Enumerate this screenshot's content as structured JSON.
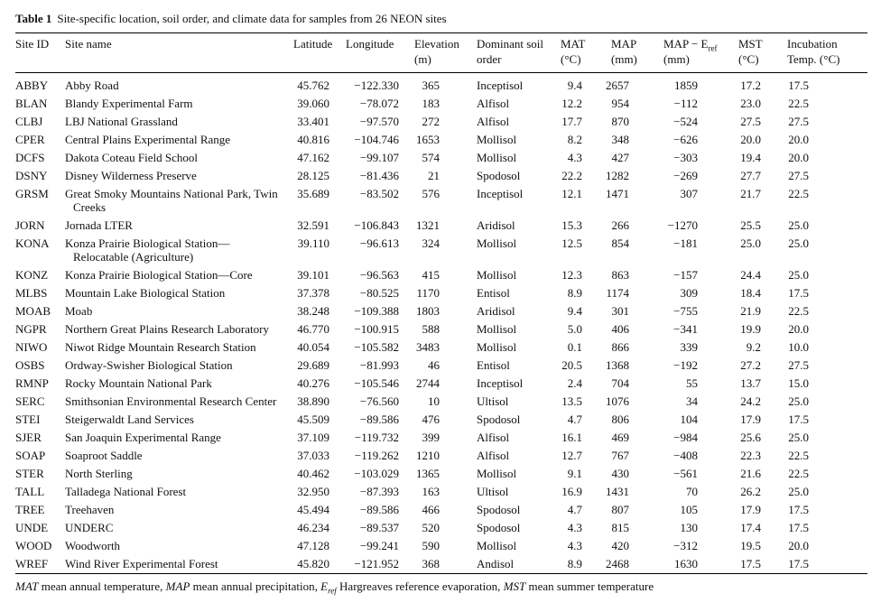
{
  "caption": {
    "label": "Table 1",
    "text": "Site-specific location, soil order, and climate data for samples from 26 NEON sites"
  },
  "headers": {
    "site_id": "Site ID",
    "site_name": "Site name",
    "latitude": "Latitude",
    "longitude": "Longitude",
    "elevation_1": "Elevation",
    "elevation_2": "(m)",
    "soil_1": "Dominant soil",
    "soil_2": "order",
    "mat_1": "MAT",
    "mat_2": "(°C)",
    "map_1": "MAP",
    "map_2": "(mm)",
    "mapref_1": "MAP − E",
    "mapref_sub": "ref",
    "mapref_2": "(mm)",
    "mst_1": "MST",
    "mst_2": "(°C)",
    "inc_1": "Incubation",
    "inc_2": "Temp. (°C)"
  },
  "rows": [
    {
      "id": "ABBY",
      "name": "Abby Road",
      "lat": "45.762",
      "lon": "−122.330",
      "elev": "365",
      "soil": "Inceptisol",
      "mat": "9.4",
      "map": "2657",
      "mapref": "1859",
      "mst": "17.2",
      "inc": "17.5"
    },
    {
      "id": "BLAN",
      "name": "Blandy Experimental Farm",
      "lat": "39.060",
      "lon": "−78.072",
      "elev": "183",
      "soil": "Alfisol",
      "mat": "12.2",
      "map": "954",
      "mapref": "−112",
      "mst": "23.0",
      "inc": "22.5"
    },
    {
      "id": "CLBJ",
      "name": "LBJ National Grassland",
      "lat": "33.401",
      "lon": "−97.570",
      "elev": "272",
      "soil": "Alfisol",
      "mat": "17.7",
      "map": "870",
      "mapref": "−524",
      "mst": "27.5",
      "inc": "27.5"
    },
    {
      "id": "CPER",
      "name": "Central Plains Experimental Range",
      "lat": "40.816",
      "lon": "−104.746",
      "elev": "1653",
      "soil": "Mollisol",
      "mat": "8.2",
      "map": "348",
      "mapref": "−626",
      "mst": "20.0",
      "inc": "20.0"
    },
    {
      "id": "DCFS",
      "name": "Dakota Coteau Field School",
      "lat": "47.162",
      "lon": "−99.107",
      "elev": "574",
      "soil": "Mollisol",
      "mat": "4.3",
      "map": "427",
      "mapref": "−303",
      "mst": "19.4",
      "inc": "20.0"
    },
    {
      "id": "DSNY",
      "name": "Disney Wilderness Preserve",
      "lat": "28.125",
      "lon": "−81.436",
      "elev": "21",
      "soil": "Spodosol",
      "mat": "22.2",
      "map": "1282",
      "mapref": "−269",
      "mst": "27.7",
      "inc": "27.5"
    },
    {
      "id": "GRSM",
      "name": "Great Smoky Mountains National Park, Twin",
      "name2": "Creeks",
      "lat": "35.689",
      "lon": "−83.502",
      "elev": "576",
      "soil": "Inceptisol",
      "mat": "12.1",
      "map": "1471",
      "mapref": "307",
      "mst": "21.7",
      "inc": "22.5"
    },
    {
      "id": "JORN",
      "name": "Jornada LTER",
      "lat": "32.591",
      "lon": "−106.843",
      "elev": "1321",
      "soil": "Aridisol",
      "mat": "15.3",
      "map": "266",
      "mapref": "−1270",
      "mst": "25.5",
      "inc": "25.0"
    },
    {
      "id": "KONA",
      "name": "Konza Prairie Biological Station—",
      "name2": "Relocatable (Agriculture)",
      "lat": "39.110",
      "lon": "−96.613",
      "elev": "324",
      "soil": "Mollisol",
      "mat": "12.5",
      "map": "854",
      "mapref": "−181",
      "mst": "25.0",
      "inc": "25.0"
    },
    {
      "id": "KONZ",
      "name": "Konza Prairie Biological Station—Core",
      "lat": "39.101",
      "lon": "−96.563",
      "elev": "415",
      "soil": "Mollisol",
      "mat": "12.3",
      "map": "863",
      "mapref": "−157",
      "mst": "24.4",
      "inc": "25.0"
    },
    {
      "id": "MLBS",
      "name": "Mountain Lake Biological Station",
      "lat": "37.378",
      "lon": "−80.525",
      "elev": "1170",
      "soil": "Entisol",
      "mat": "8.9",
      "map": "1174",
      "mapref": "309",
      "mst": "18.4",
      "inc": "17.5"
    },
    {
      "id": "MOAB",
      "name": "Moab",
      "lat": "38.248",
      "lon": "−109.388",
      "elev": "1803",
      "soil": "Aridisol",
      "mat": "9.4",
      "map": "301",
      "mapref": "−755",
      "mst": "21.9",
      "inc": "22.5"
    },
    {
      "id": "NGPR",
      "name": "Northern Great Plains Research Laboratory",
      "lat": "46.770",
      "lon": "−100.915",
      "elev": "588",
      "soil": "Mollisol",
      "mat": "5.0",
      "map": "406",
      "mapref": "−341",
      "mst": "19.9",
      "inc": "20.0"
    },
    {
      "id": "NIWO",
      "name": "Niwot Ridge Mountain Research Station",
      "lat": "40.054",
      "lon": "−105.582",
      "elev": "3483",
      "soil": "Mollisol",
      "mat": "0.1",
      "map": "866",
      "mapref": "339",
      "mst": "9.2",
      "inc": "10.0"
    },
    {
      "id": "OSBS",
      "name": "Ordway-Swisher Biological Station",
      "lat": "29.689",
      "lon": "−81.993",
      "elev": "46",
      "soil": "Entisol",
      "mat": "20.5",
      "map": "1368",
      "mapref": "−192",
      "mst": "27.2",
      "inc": "27.5"
    },
    {
      "id": "RMNP",
      "name": "Rocky Mountain National Park",
      "lat": "40.276",
      "lon": "−105.546",
      "elev": "2744",
      "soil": "Inceptisol",
      "mat": "2.4",
      "map": "704",
      "mapref": "55",
      "mst": "13.7",
      "inc": "15.0"
    },
    {
      "id": "SERC",
      "name": "Smithsonian Environmental Research Center",
      "lat": "38.890",
      "lon": "−76.560",
      "elev": "10",
      "soil": "Ultisol",
      "mat": "13.5",
      "map": "1076",
      "mapref": "34",
      "mst": "24.2",
      "inc": "25.0"
    },
    {
      "id": "STEI",
      "name": "Steigerwaldt Land Services",
      "lat": "45.509",
      "lon": "−89.586",
      "elev": "476",
      "soil": "Spodosol",
      "mat": "4.7",
      "map": "806",
      "mapref": "104",
      "mst": "17.9",
      "inc": "17.5"
    },
    {
      "id": "SJER",
      "name": "San Joaquin Experimental Range",
      "lat": "37.109",
      "lon": "−119.732",
      "elev": "399",
      "soil": "Alfisol",
      "mat": "16.1",
      "map": "469",
      "mapref": "−984",
      "mst": "25.6",
      "inc": "25.0"
    },
    {
      "id": "SOAP",
      "name": "Soaproot Saddle",
      "lat": "37.033",
      "lon": "−119.262",
      "elev": "1210",
      "soil": "Alfisol",
      "mat": "12.7",
      "map": "767",
      "mapref": "−408",
      "mst": "22.3",
      "inc": "22.5"
    },
    {
      "id": "STER",
      "name": "North Sterling",
      "lat": "40.462",
      "lon": "−103.029",
      "elev": "1365",
      "soil": "Mollisol",
      "mat": "9.1",
      "map": "430",
      "mapref": "−561",
      "mst": "21.6",
      "inc": "22.5"
    },
    {
      "id": "TALL",
      "name": "Talladega National Forest",
      "lat": "32.950",
      "lon": "−87.393",
      "elev": "163",
      "soil": "Ultisol",
      "mat": "16.9",
      "map": "1431",
      "mapref": "70",
      "mst": "26.2",
      "inc": "25.0"
    },
    {
      "id": "TREE",
      "name": "Treehaven",
      "lat": "45.494",
      "lon": "−89.586",
      "elev": "466",
      "soil": "Spodosol",
      "mat": "4.7",
      "map": "807",
      "mapref": "105",
      "mst": "17.9",
      "inc": "17.5"
    },
    {
      "id": "UNDE",
      "name": "UNDERC",
      "lat": "46.234",
      "lon": "−89.537",
      "elev": "520",
      "soil": "Spodosol",
      "mat": "4.3",
      "map": "815",
      "mapref": "130",
      "mst": "17.4",
      "inc": "17.5"
    },
    {
      "id": "WOOD",
      "name": "Woodworth",
      "lat": "47.128",
      "lon": "−99.241",
      "elev": "590",
      "soil": "Mollisol",
      "mat": "4.3",
      "map": "420",
      "mapref": "−312",
      "mst": "19.5",
      "inc": "20.0"
    },
    {
      "id": "WREF",
      "name": "Wind River Experimental Forest",
      "lat": "45.820",
      "lon": "−121.952",
      "elev": "368",
      "soil": "Andisol",
      "mat": "8.9",
      "map": "2468",
      "mapref": "1630",
      "mst": "17.5",
      "inc": "17.5"
    }
  ],
  "footnote": {
    "mat_abbr": "MAT",
    "mat_def": " mean annual temperature, ",
    "map_abbr": "MAP",
    "map_def": " mean annual precipitation, ",
    "eref_abbr": "E",
    "eref_sub": "ref",
    "eref_def": " Hargreaves reference evaporation, ",
    "mst_abbr": "MST",
    "mst_def": " mean summer temperature"
  }
}
